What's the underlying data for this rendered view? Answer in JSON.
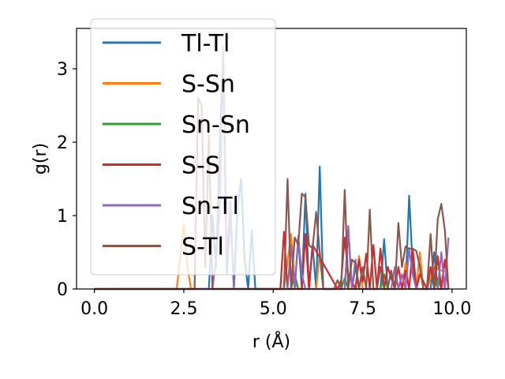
{
  "chart_data": {
    "type": "line",
    "xlabel": "r (Å)",
    "ylabel": "g(r)",
    "xlim": [
      -0.5,
      10.4
    ],
    "ylim": [
      0,
      3.55
    ],
    "xticks": [
      0.0,
      2.5,
      5.0,
      7.5,
      10.0
    ],
    "xtick_labels": [
      "0.0",
      "2.5",
      "5.0",
      "7.5",
      "10.0"
    ],
    "yticks": [
      0,
      1,
      2,
      3
    ],
    "ytick_labels": [
      "0",
      "1",
      "2",
      "3"
    ],
    "grid": false,
    "legend_position": "upper-left",
    "series": [
      {
        "name": "Tl-Tl",
        "color": "#1f77b4",
        "x": [
          0,
          3.2,
          3.3,
          3.4,
          3.5,
          3.6,
          3.7,
          3.8,
          3.9,
          4.0,
          4.1,
          4.2,
          4.3,
          4.4,
          4.5,
          5.6,
          5.7,
          5.8,
          5.9,
          6.0,
          6.1,
          6.2,
          6.3,
          6.4,
          6.5,
          7.0,
          7.1,
          7.2,
          7.3,
          7.4,
          8.0,
          8.1,
          8.2,
          8.7,
          8.8,
          8.9,
          9.0,
          9.4,
          9.5,
          9.6,
          9.9
        ],
        "y": [
          0,
          0,
          1.0,
          0.3,
          1.9,
          3.2,
          0.2,
          1.0,
          0.0,
          1.1,
          1.5,
          0.4,
          0.0,
          0.8,
          0.0,
          0.0,
          0.7,
          0.0,
          1.3,
          0.0,
          0.6,
          0.0,
          1.67,
          0.0,
          0.0,
          0.0,
          0.8,
          0.0,
          0.3,
          0.0,
          0.0,
          0.68,
          0.0,
          0.0,
          1.27,
          0.3,
          0.0,
          0.0,
          0.5,
          0.0,
          0.0
        ]
      },
      {
        "name": "S-Sn",
        "color": "#ff7f0e",
        "x": [
          0,
          2.3,
          2.5,
          2.6,
          2.7,
          5.3,
          5.5,
          5.6,
          5.7,
          6.2,
          6.3,
          6.4,
          7.3,
          7.4,
          7.5,
          8.6,
          8.7,
          8.8,
          9.0,
          9.1,
          9.2,
          9.3,
          9.5,
          9.7,
          9.9
        ],
        "y": [
          0,
          0,
          0.88,
          0.3,
          0.0,
          0.0,
          0.75,
          0.1,
          0.0,
          0.0,
          0.5,
          0.0,
          0.0,
          0.45,
          0.0,
          0.0,
          0.35,
          0.0,
          0.0,
          0.5,
          0.0,
          0.0,
          0.3,
          0.25,
          0.22
        ]
      },
      {
        "name": "Sn-Sn",
        "color": "#2ca02c",
        "x": [
          0,
          5.5,
          5.6,
          5.7,
          6.9,
          7.0,
          7.1,
          8.0,
          8.1,
          8.2,
          9.5,
          9.6,
          9.7
        ],
        "y": [
          0,
          0,
          0.2,
          0.0,
          0.0,
          0.15,
          0.0,
          0.0,
          0.2,
          0.0,
          0.0,
          0.15,
          0.0
        ]
      },
      {
        "name": "S-S",
        "color": "#d62728",
        "x": [
          0,
          5.2,
          5.3,
          5.4,
          5.5,
          5.8,
          5.9,
          6.0,
          6.1,
          6.8,
          6.9,
          7.0,
          7.1,
          7.3,
          7.4,
          7.5,
          7.6,
          7.7,
          7.8,
          7.9,
          8.0,
          8.1,
          8.2,
          8.4,
          8.5,
          8.6,
          8.7,
          8.8,
          8.9,
          9.0,
          9.1,
          9.3,
          9.4,
          9.5,
          9.6,
          9.7,
          9.8,
          9.9
        ],
        "y": [
          0,
          0,
          0.78,
          0.0,
          0.0,
          0.0,
          0.75,
          0.0,
          0.6,
          0.0,
          0.12,
          0.7,
          0.2,
          0.0,
          0.4,
          0.1,
          0.48,
          0.0,
          0.6,
          0.0,
          0.55,
          0.0,
          0.3,
          0.0,
          0.3,
          0.0,
          0.25,
          0.0,
          0.55,
          0.0,
          0.2,
          0.0,
          0.3,
          0.0,
          0.45,
          0.0,
          0.4,
          0.0
        ]
      },
      {
        "name": "Sn-Tl",
        "color": "#9467bd",
        "x": [
          0,
          3.3,
          3.4,
          3.5,
          3.6,
          3.7,
          3.8,
          3.9,
          5.4,
          5.5,
          5.6,
          5.7,
          5.8,
          5.9,
          6.0,
          7.0,
          7.1,
          7.2,
          7.3,
          7.4,
          8.3,
          8.4,
          8.5,
          8.6,
          8.7,
          8.8,
          8.9,
          9.0,
          9.6,
          9.7,
          9.8,
          9.9
        ],
        "y": [
          0,
          0,
          0.4,
          1.0,
          3.3,
          0.4,
          1.2,
          0.0,
          0.0,
          0.6,
          0.0,
          0.72,
          0.2,
          0.0,
          0.0,
          0.0,
          0.86,
          0.0,
          0.4,
          0.0,
          0.0,
          0.3,
          0.0,
          0.2,
          0.0,
          0.55,
          0.2,
          0.0,
          0.0,
          0.5,
          0.0,
          0.7
        ]
      },
      {
        "name": "S-Tl",
        "color": "#8c564b",
        "x": [
          0,
          2.8,
          2.9,
          3.0,
          3.1,
          3.2,
          3.3,
          3.4,
          5.3,
          5.4,
          5.5,
          5.6,
          5.7,
          5.8,
          5.9,
          6.0,
          6.1,
          6.2,
          6.3,
          6.4,
          6.5,
          6.7,
          6.8,
          6.9,
          7.0,
          7.1,
          7.2,
          7.3,
          7.4,
          7.5,
          7.6,
          7.7,
          7.8,
          7.9,
          8.0,
          8.1,
          8.2,
          8.3,
          8.4,
          8.5,
          8.6,
          8.7,
          8.8,
          8.9,
          9.0,
          9.1,
          9.2,
          9.3,
          9.4,
          9.5,
          9.6,
          9.7,
          9.8,
          9.9
        ],
        "y": [
          0,
          0,
          2.6,
          2.5,
          0.3,
          2.1,
          0.0,
          0.0,
          0.0,
          1.5,
          0.0,
          0.7,
          0.6,
          1.3,
          1.25,
          0.6,
          0.55,
          1.05,
          0.5,
          0.0,
          0.0,
          0.0,
          0.12,
          0.0,
          1.35,
          0.0,
          0.4,
          0.35,
          0.0,
          0.3,
          0.0,
          1.08,
          0.0,
          0.0,
          0.3,
          0.0,
          0.0,
          0.25,
          0.0,
          0.9,
          0.3,
          0.58,
          0.55,
          0.55,
          0.52,
          0.3,
          0.0,
          0.0,
          0.75,
          0.0,
          0.95,
          1.16,
          0.8,
          0.0
        ]
      }
    ]
  }
}
